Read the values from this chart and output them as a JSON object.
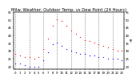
{
  "title": "Milw. Weather: Outdoor Temp. vs Dew Point (24 Hours)",
  "title_fontsize": 3.8,
  "background_color": "#ffffff",
  "plot_bg_color": "#ffffff",
  "grid_color": "#888888",
  "temp_color": "#ff0000",
  "dew_color": "#0000ff",
  "temp_data": [
    [
      0,
      28
    ],
    [
      1,
      27
    ],
    [
      2,
      26
    ],
    [
      3,
      26
    ],
    [
      4,
      25
    ],
    [
      5,
      26
    ],
    [
      6,
      31
    ],
    [
      7,
      38
    ],
    [
      8,
      46
    ],
    [
      9,
      50
    ],
    [
      10,
      49
    ],
    [
      11,
      46
    ],
    [
      12,
      43
    ],
    [
      13,
      41
    ],
    [
      14,
      39
    ],
    [
      15,
      37
    ],
    [
      16,
      36
    ],
    [
      17,
      35
    ],
    [
      18,
      34
    ],
    [
      19,
      33
    ],
    [
      20,
      32
    ],
    [
      21,
      31
    ],
    [
      22,
      30
    ],
    [
      23,
      30
    ]
  ],
  "dew_data": [
    [
      0,
      22
    ],
    [
      1,
      22
    ],
    [
      2,
      21
    ],
    [
      3,
      20
    ],
    [
      4,
      20
    ],
    [
      5,
      20
    ],
    [
      6,
      24
    ],
    [
      7,
      29
    ],
    [
      8,
      34
    ],
    [
      9,
      35
    ],
    [
      10,
      33
    ],
    [
      11,
      31
    ],
    [
      12,
      30
    ],
    [
      13,
      29
    ],
    [
      14,
      28
    ],
    [
      15,
      28
    ],
    [
      16,
      27
    ],
    [
      17,
      27
    ],
    [
      18,
      26
    ],
    [
      19,
      26
    ],
    [
      20,
      25
    ],
    [
      21,
      25
    ],
    [
      22,
      25
    ],
    [
      23,
      24
    ]
  ],
  "xlim": [
    -0.5,
    23.5
  ],
  "ylim": [
    18,
    55
  ],
  "xtick_positions": [
    0,
    1,
    2,
    3,
    4,
    5,
    6,
    7,
    8,
    9,
    10,
    11,
    12,
    13,
    14,
    15,
    16,
    17,
    18,
    19,
    20,
    21,
    22,
    23
  ],
  "xtick_labels": [
    "0",
    "1",
    "2",
    "3",
    "4",
    "5",
    "6",
    "7",
    "8",
    "9",
    "10",
    "11",
    "12",
    "13",
    "14",
    "15",
    "16",
    "17",
    "18",
    "19",
    "20",
    "21",
    "22",
    "23"
  ],
  "ytick_positions": [
    20,
    25,
    30,
    35,
    40,
    45,
    50,
    55
  ],
  "ytick_labels": [
    "20",
    "25",
    "30",
    "35",
    "40",
    "45",
    "50",
    "55"
  ],
  "tick_fontsize": 2.8,
  "marker_size": 0.8,
  "vgrid_positions": [
    0,
    3,
    6,
    9,
    12,
    15,
    18,
    21
  ],
  "ylabel_right": "°F",
  "ylabel_right_fontsize": 3.5,
  "spine_linewidth": 0.3,
  "grid_linewidth": 0.4,
  "grid_linestyle": "--"
}
